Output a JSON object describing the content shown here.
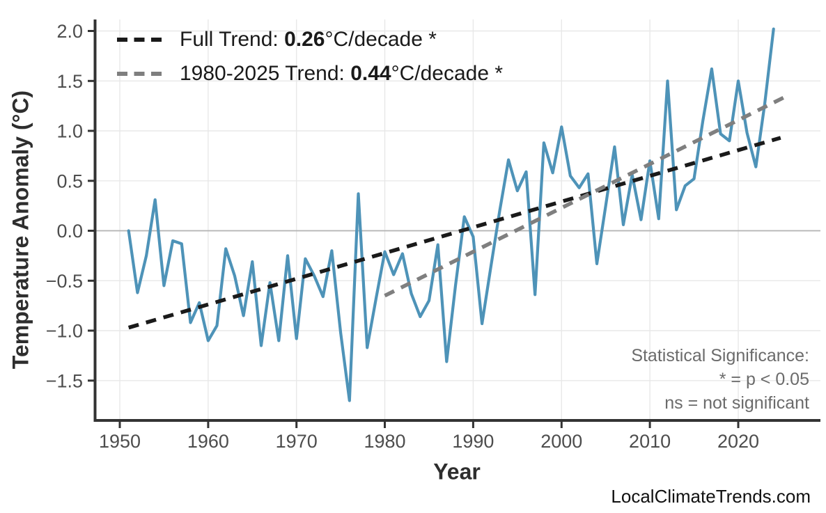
{
  "chart_data": {
    "type": "line",
    "title": "",
    "xlabel": "Year",
    "ylabel": "Temperature Anomaly (°C)",
    "x_ticks": [
      1950,
      1960,
      1970,
      1980,
      1990,
      2000,
      2010,
      2020
    ],
    "y_tick_values": [
      2.0,
      1.5,
      1.0,
      0.5,
      0.0,
      -0.5,
      -1.0,
      -1.5
    ],
    "y_tick_labels": [
      "2.0",
      "1.5",
      "1.0",
      "0.5",
      "0.0",
      "−0.5",
      "−1.0",
      "−1.5"
    ],
    "xlim": [
      1947.1,
      2029.3
    ],
    "ylim": [
      -1.89,
      2.11
    ],
    "grid": "major gridlines only, light gray, darker zero line, no top/right spines",
    "legend_position": "top-left",
    "grid_color": "#e8e8e8",
    "zero_line_color": "#b3b3b3",
    "axis_color": "#333333",
    "tick_label_color": "#4d4d4d",
    "series": [
      {
        "name": "annual temperature anomaly",
        "color": "#4e93b8",
        "x": [
          1951,
          1952,
          1953,
          1954,
          1955,
          1956,
          1957,
          1958,
          1959,
          1960,
          1961,
          1962,
          1963,
          1964,
          1965,
          1966,
          1967,
          1968,
          1969,
          1970,
          1971,
          1972,
          1973,
          1974,
          1975,
          1976,
          1977,
          1978,
          1979,
          1980,
          1981,
          1982,
          1983,
          1984,
          1985,
          1986,
          1987,
          1988,
          1989,
          1990,
          1991,
          1992,
          1993,
          1994,
          1995,
          1996,
          1997,
          1998,
          1999,
          2000,
          2001,
          2002,
          2003,
          2004,
          2005,
          2006,
          2007,
          2008,
          2009,
          2010,
          2011,
          2012,
          2013,
          2014,
          2015,
          2016,
          2017,
          2018,
          2019,
          2020,
          2021,
          2022,
          2023,
          2024
        ],
        "values": [
          0.0,
          -0.62,
          -0.25,
          0.31,
          -0.55,
          -0.1,
          -0.13,
          -0.92,
          -0.72,
          -1.1,
          -0.95,
          -0.18,
          -0.45,
          -0.85,
          -0.31,
          -1.15,
          -0.52,
          -1.1,
          -0.25,
          -1.08,
          -0.28,
          -0.45,
          -0.66,
          -0.2,
          -1.02,
          -1.7,
          0.37,
          -1.17,
          -0.68,
          -0.21,
          -0.44,
          -0.23,
          -0.63,
          -0.86,
          -0.7,
          -0.14,
          -1.31,
          -0.55,
          0.14,
          -0.06,
          -0.93,
          -0.36,
          0.2,
          0.71,
          0.4,
          0.59,
          -0.64,
          0.88,
          0.58,
          1.04,
          0.55,
          0.43,
          0.57,
          -0.33,
          0.25,
          0.84,
          0.06,
          0.56,
          0.11,
          0.7,
          0.12,
          1.5,
          0.21,
          0.45,
          0.52,
          1.1,
          1.62,
          0.97,
          0.9,
          1.5,
          0.98,
          0.64,
          1.27,
          2.02
        ]
      }
    ],
    "trend_lines": [
      {
        "name": "full trend",
        "label_prefix": "Full Trend: ",
        "value": "0.26",
        "label_suffix": "°C/decade *",
        "color": "#1a1a1a",
        "slope_per_decade": 0.26,
        "x1": 1951,
        "y1": -0.97,
        "x2": 2024.8,
        "y2": 0.93
      },
      {
        "name": "1980-2025 trend",
        "label_prefix": "1980-2025 Trend: ",
        "value": "0.44",
        "label_suffix": "°C/decade *",
        "color": "#7f7f7f",
        "slope_per_decade": 0.44,
        "x1": 1980,
        "y1": -0.65,
        "x2": 2025.3,
        "y2": 1.34
      }
    ],
    "annotation": {
      "line1": "Statistical Significance:",
      "line2": "* = p < 0.05",
      "line3": "ns = not significant"
    },
    "watermark": "LocalClimateTrends.com"
  }
}
